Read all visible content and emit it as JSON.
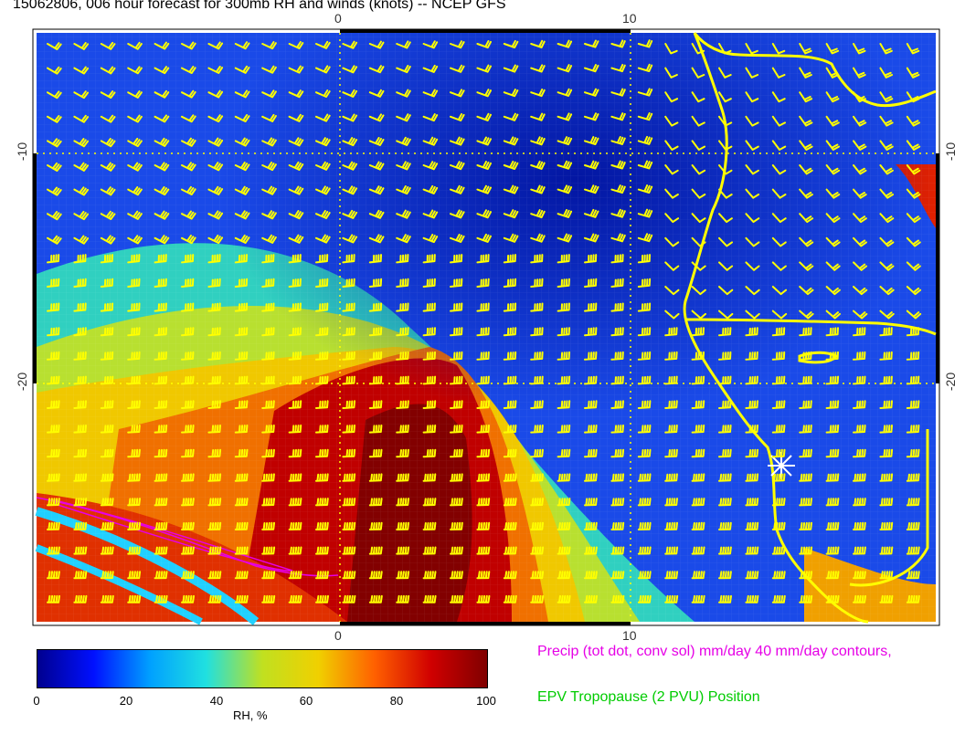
{
  "title": "15062806, 006 hour forecast for 300mb RH and winds (knots) -- NCEP GFS",
  "axes": {
    "top_ticks": [
      "0",
      "10"
    ],
    "bottom_ticks": [
      "0",
      "10"
    ],
    "left_ticks": [
      "-10",
      "-20"
    ],
    "right_ticks": [
      "-10",
      "-20"
    ]
  },
  "colorbar": {
    "label": "RH, %",
    "ticks": [
      "0",
      "20",
      "40",
      "60",
      "80",
      "100"
    ],
    "min": 0,
    "max": 100,
    "stops": [
      "#00008f",
      "#0010ff",
      "#00a0ff",
      "#20e0e0",
      "#c0e020",
      "#f0d000",
      "#ff6000",
      "#d00000",
      "#800000"
    ]
  },
  "notes": {
    "precip": "Precip (tot dot, conv sol) mm/day 40 mm/day contours,",
    "tropopause": "EPV Tropopause (2 PVU) Position"
  },
  "colors": {
    "wind_barbs": "#ffff00",
    "coastline": "#ffff00",
    "precip_contour": "#e600e6",
    "tropopause_label": "#00cc00",
    "marker": "#ffffff"
  }
}
